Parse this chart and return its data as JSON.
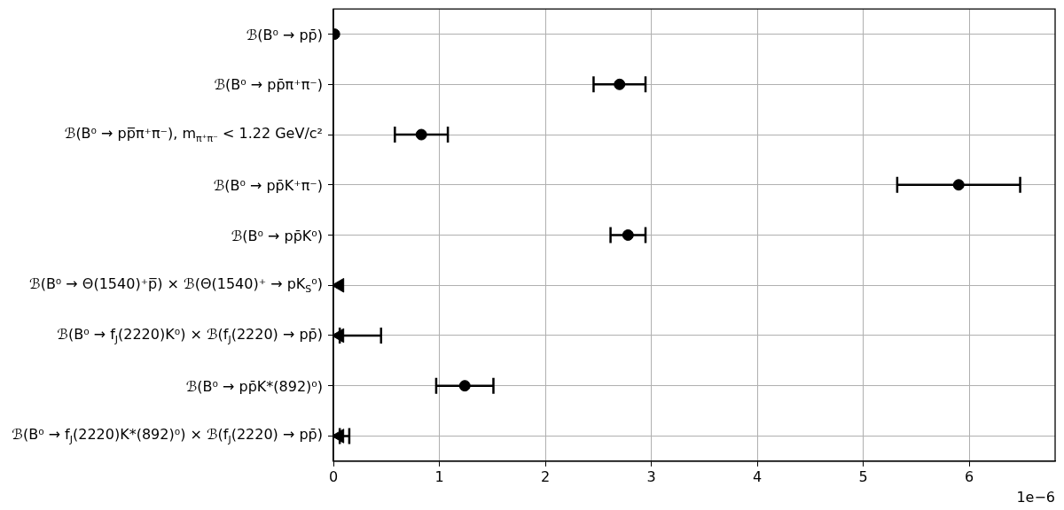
{
  "chart_data": {
    "type": "scatter",
    "orientation": "horizontal",
    "categories": [
      "ℬ(B⁰ → pp̄)",
      "ℬ(B⁰ → pp̄π⁺π⁻)",
      "ℬ(B⁰ → pp̅π⁺π⁻),  m$_{π⁺π⁻}$ < 1.22 GeV/c²",
      "ℬ(B⁰ → pp̄K⁺π⁻)",
      "ℬ(B⁰ → pp̄K⁰)",
      "ℬ(B⁰ → Θ(1540)⁺p̅) × ℬ(Θ(1540)⁺ → pK$_{S}$⁰)",
      "ℬ(B⁰ → f$_{J}$(2220)K⁰) × ℬ(f$_{J}$(2220) → pp̄)",
      "ℬ(B⁰ → pp̄K*(892)⁰)",
      "ℬ(B⁰ → f$_{J}$(2220)K*(892)⁰) × ℬ(f$_{J}$(2220) → pp̄)"
    ],
    "series": [
      {
        "marker": "circle",
        "color": "#000000",
        "values": [
          0.01,
          2.7,
          0.83,
          5.9,
          2.78,
          null,
          null,
          1.24,
          null
        ],
        "errors": [
          null,
          0.245,
          0.25,
          0.58,
          0.165,
          null,
          null,
          0.27,
          null
        ]
      },
      {
        "marker": "triangle",
        "color": "#000000",
        "values": [
          null,
          null,
          null,
          null,
          null,
          0.06,
          0.06,
          null,
          0.06
        ],
        "errors": [
          null,
          null,
          null,
          null,
          null,
          null,
          [
            0.06,
            0.45
          ],
          null,
          [
            0.06,
            0.15
          ]
        ]
      }
    ],
    "xlim": [
      0,
      6.81
    ],
    "xticks": [
      0,
      1,
      2,
      3,
      4,
      5,
      6
    ],
    "grid": true,
    "annotations": [
      "1e−6"
    ]
  }
}
